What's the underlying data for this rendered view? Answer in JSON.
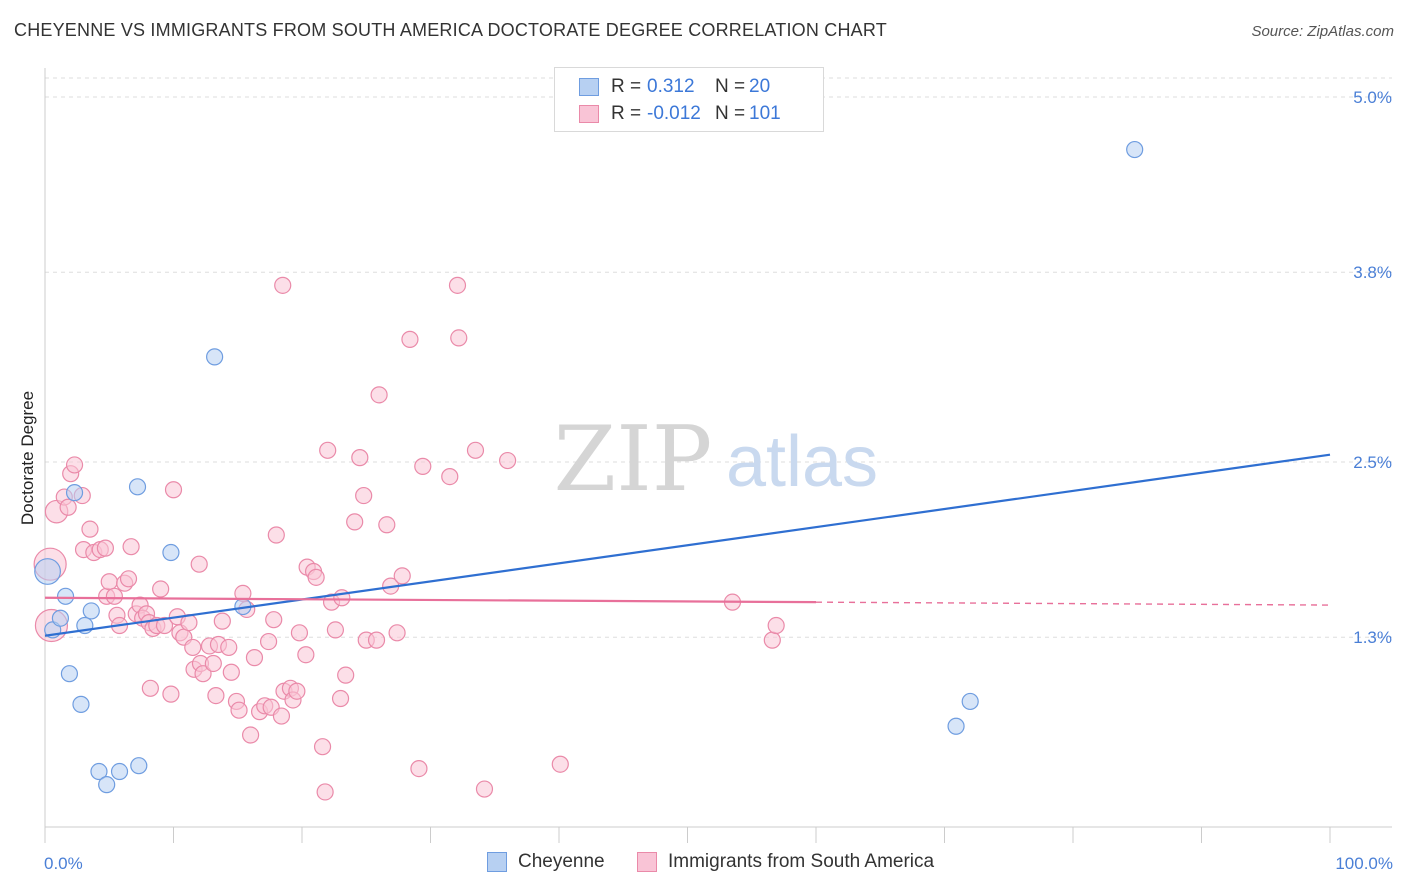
{
  "header": {
    "title": "CHEYENNE VS IMMIGRANTS FROM SOUTH AMERICA DOCTORATE DEGREE CORRELATION CHART",
    "source": "Source: ZipAtlas.com"
  },
  "watermark": {
    "zip": "ZIP",
    "atlas": "atlas"
  },
  "legend_top": {
    "rows": [
      {
        "r_label": "R =",
        "r_value": "0.312",
        "n_label": "N =",
        "n_value": "20"
      },
      {
        "r_label": "R =",
        "r_value": "-0.012",
        "n_label": "N =",
        "n_value": "101"
      }
    ]
  },
  "legend_bottom": {
    "items": [
      "Cheyenne",
      "Immigrants from South America"
    ]
  },
  "colors": {
    "cheyenne_fill": "#b7d0f2",
    "cheyenne_stroke": "#6f9de0",
    "cheyenne_line": "#2f6fd1",
    "immig_fill": "#f9c4d6",
    "immig_stroke": "#ea8aa9",
    "immig_line": "#e8709a",
    "tick_label": "#4a7fd6",
    "grid": "#dddddd"
  },
  "chart_data": {
    "type": "scatter",
    "title": "CHEYENNE VS IMMIGRANTS FROM SOUTH AMERICA DOCTORATE DEGREE CORRELATION CHART",
    "xlabel": "",
    "ylabel": "Doctorate Degree",
    "xlim": [
      0,
      100
    ],
    "ylim": [
      0,
      5.2
    ],
    "x_tick_labels": [
      "0.0%",
      "100.0%"
    ],
    "y_ticks": [
      1.3,
      2.5,
      3.8,
      5.0
    ],
    "y_tick_labels": [
      "1.3%",
      "2.5%",
      "3.8%",
      "5.0%"
    ],
    "series": [
      {
        "name": "Cheyenne",
        "r": 0.312,
        "n": 20,
        "trend": {
          "x": [
            0,
            100
          ],
          "y": [
            1.31,
            2.55
          ],
          "dashed_from": null
        },
        "points": [
          {
            "x": 0.2,
            "y": 1.75,
            "s": 1.6
          },
          {
            "x": 0.6,
            "y": 1.35,
            "s": 1.0
          },
          {
            "x": 1.2,
            "y": 1.43,
            "s": 1.0
          },
          {
            "x": 1.6,
            "y": 1.58,
            "s": 1.0
          },
          {
            "x": 1.9,
            "y": 1.05,
            "s": 1.0
          },
          {
            "x": 2.8,
            "y": 0.84,
            "s": 1.0
          },
          {
            "x": 2.3,
            "y": 2.29,
            "s": 1.0
          },
          {
            "x": 3.1,
            "y": 1.38,
            "s": 1.0
          },
          {
            "x": 3.6,
            "y": 1.48,
            "s": 1.0
          },
          {
            "x": 4.2,
            "y": 0.38,
            "s": 1.0
          },
          {
            "x": 4.8,
            "y": 0.29,
            "s": 1.0
          },
          {
            "x": 5.8,
            "y": 0.38,
            "s": 1.0
          },
          {
            "x": 7.3,
            "y": 0.42,
            "s": 1.0
          },
          {
            "x": 7.2,
            "y": 2.33,
            "s": 1.0
          },
          {
            "x": 9.8,
            "y": 1.88,
            "s": 1.0
          },
          {
            "x": 13.2,
            "y": 3.22,
            "s": 1.0
          },
          {
            "x": 15.4,
            "y": 1.51,
            "s": 1.0
          },
          {
            "x": 70.9,
            "y": 0.69,
            "s": 1.0
          },
          {
            "x": 72.0,
            "y": 0.86,
            "s": 1.0
          },
          {
            "x": 84.8,
            "y": 4.64,
            "s": 1.0
          }
        ]
      },
      {
        "name": "Immigrants from South America",
        "r": -0.012,
        "n": 101,
        "trend": {
          "x": [
            0,
            100
          ],
          "y": [
            1.57,
            1.52
          ],
          "dashed_from": 60
        },
        "points": [
          {
            "x": 0.4,
            "y": 1.8,
            "s": 2.0
          },
          {
            "x": 0.5,
            "y": 1.38,
            "s": 2.0
          },
          {
            "x": 0.9,
            "y": 2.16,
            "s": 1.4
          },
          {
            "x": 1.5,
            "y": 2.26,
            "s": 1.0
          },
          {
            "x": 1.8,
            "y": 2.19,
            "s": 1.0
          },
          {
            "x": 2.0,
            "y": 2.42,
            "s": 1.0
          },
          {
            "x": 2.3,
            "y": 2.48,
            "s": 1.0
          },
          {
            "x": 2.9,
            "y": 2.27,
            "s": 1.0
          },
          {
            "x": 3.0,
            "y": 1.9,
            "s": 1.0
          },
          {
            "x": 3.5,
            "y": 2.04,
            "s": 1.0
          },
          {
            "x": 3.8,
            "y": 1.88,
            "s": 1.0
          },
          {
            "x": 4.3,
            "y": 1.9,
            "s": 1.0
          },
          {
            "x": 4.7,
            "y": 1.91,
            "s": 1.0
          },
          {
            "x": 4.8,
            "y": 1.58,
            "s": 1.0
          },
          {
            "x": 5.0,
            "y": 1.68,
            "s": 1.0
          },
          {
            "x": 5.4,
            "y": 1.58,
            "s": 1.0
          },
          {
            "x": 5.6,
            "y": 1.45,
            "s": 1.0
          },
          {
            "x": 5.8,
            "y": 1.38,
            "s": 1.0
          },
          {
            "x": 6.2,
            "y": 1.67,
            "s": 1.0
          },
          {
            "x": 6.5,
            "y": 1.7,
            "s": 1.0
          },
          {
            "x": 6.7,
            "y": 1.92,
            "s": 1.0
          },
          {
            "x": 7.1,
            "y": 1.46,
            "s": 1.0
          },
          {
            "x": 7.4,
            "y": 1.52,
            "s": 1.0
          },
          {
            "x": 7.6,
            "y": 1.43,
            "s": 1.0
          },
          {
            "x": 7.9,
            "y": 1.46,
            "s": 1.0
          },
          {
            "x": 8.1,
            "y": 1.4,
            "s": 1.0
          },
          {
            "x": 8.2,
            "y": 0.95,
            "s": 1.0
          },
          {
            "x": 8.4,
            "y": 1.36,
            "s": 1.0
          },
          {
            "x": 8.7,
            "y": 1.38,
            "s": 1.0
          },
          {
            "x": 9.0,
            "y": 1.63,
            "s": 1.0
          },
          {
            "x": 9.3,
            "y": 1.38,
            "s": 1.0
          },
          {
            "x": 9.8,
            "y": 0.91,
            "s": 1.0
          },
          {
            "x": 10.0,
            "y": 2.31,
            "s": 1.0
          },
          {
            "x": 10.3,
            "y": 1.44,
            "s": 1.0
          },
          {
            "x": 10.5,
            "y": 1.33,
            "s": 1.0
          },
          {
            "x": 10.8,
            "y": 1.3,
            "s": 1.0
          },
          {
            "x": 11.2,
            "y": 1.4,
            "s": 1.0
          },
          {
            "x": 11.5,
            "y": 1.23,
            "s": 1.0
          },
          {
            "x": 11.6,
            "y": 1.08,
            "s": 1.0
          },
          {
            "x": 12.0,
            "y": 1.8,
            "s": 1.0
          },
          {
            "x": 12.1,
            "y": 1.12,
            "s": 1.0
          },
          {
            "x": 12.3,
            "y": 1.05,
            "s": 1.0
          },
          {
            "x": 12.8,
            "y": 1.24,
            "s": 1.0
          },
          {
            "x": 13.1,
            "y": 1.12,
            "s": 1.0
          },
          {
            "x": 13.3,
            "y": 0.9,
            "s": 1.0
          },
          {
            "x": 13.5,
            "y": 1.25,
            "s": 1.0
          },
          {
            "x": 13.8,
            "y": 1.41,
            "s": 1.0
          },
          {
            "x": 14.3,
            "y": 1.23,
            "s": 1.0
          },
          {
            "x": 14.5,
            "y": 1.06,
            "s": 1.0
          },
          {
            "x": 14.9,
            "y": 0.86,
            "s": 1.0
          },
          {
            "x": 15.1,
            "y": 0.8,
            "s": 1.0
          },
          {
            "x": 15.4,
            "y": 1.6,
            "s": 1.0
          },
          {
            "x": 15.7,
            "y": 1.49,
            "s": 1.0
          },
          {
            "x": 16.0,
            "y": 0.63,
            "s": 1.0
          },
          {
            "x": 16.3,
            "y": 1.16,
            "s": 1.0
          },
          {
            "x": 16.7,
            "y": 0.79,
            "s": 1.0
          },
          {
            "x": 17.1,
            "y": 0.83,
            "s": 1.0
          },
          {
            "x": 17.4,
            "y": 1.27,
            "s": 1.0
          },
          {
            "x": 17.6,
            "y": 0.82,
            "s": 1.0
          },
          {
            "x": 17.8,
            "y": 1.42,
            "s": 1.0
          },
          {
            "x": 18.0,
            "y": 2.0,
            "s": 1.0
          },
          {
            "x": 18.4,
            "y": 0.76,
            "s": 1.0
          },
          {
            "x": 18.5,
            "y": 3.71,
            "s": 1.0
          },
          {
            "x": 18.6,
            "y": 0.93,
            "s": 1.0
          },
          {
            "x": 19.1,
            "y": 0.95,
            "s": 1.0
          },
          {
            "x": 19.3,
            "y": 0.87,
            "s": 1.0
          },
          {
            "x": 19.6,
            "y": 0.93,
            "s": 1.0
          },
          {
            "x": 19.8,
            "y": 1.33,
            "s": 1.0
          },
          {
            "x": 20.3,
            "y": 1.18,
            "s": 1.0
          },
          {
            "x": 20.4,
            "y": 1.78,
            "s": 1.0
          },
          {
            "x": 20.9,
            "y": 1.75,
            "s": 1.0
          },
          {
            "x": 21.1,
            "y": 1.71,
            "s": 1.0
          },
          {
            "x": 21.6,
            "y": 0.55,
            "s": 1.0
          },
          {
            "x": 21.8,
            "y": 0.24,
            "s": 1.0
          },
          {
            "x": 22.0,
            "y": 2.58,
            "s": 1.0
          },
          {
            "x": 22.3,
            "y": 1.54,
            "s": 1.0
          },
          {
            "x": 22.6,
            "y": 1.35,
            "s": 1.0
          },
          {
            "x": 23.0,
            "y": 0.88,
            "s": 1.0
          },
          {
            "x": 23.1,
            "y": 1.57,
            "s": 1.0
          },
          {
            "x": 23.4,
            "y": 1.04,
            "s": 1.0
          },
          {
            "x": 24.1,
            "y": 2.09,
            "s": 1.0
          },
          {
            "x": 24.5,
            "y": 2.53,
            "s": 1.0
          },
          {
            "x": 24.8,
            "y": 2.27,
            "s": 1.0
          },
          {
            "x": 25.0,
            "y": 1.28,
            "s": 1.0
          },
          {
            "x": 25.8,
            "y": 1.28,
            "s": 1.0
          },
          {
            "x": 26.0,
            "y": 2.96,
            "s": 1.0
          },
          {
            "x": 26.6,
            "y": 2.07,
            "s": 1.0
          },
          {
            "x": 26.9,
            "y": 1.65,
            "s": 1.0
          },
          {
            "x": 27.4,
            "y": 1.33,
            "s": 1.0
          },
          {
            "x": 27.8,
            "y": 1.72,
            "s": 1.0
          },
          {
            "x": 28.4,
            "y": 3.34,
            "s": 1.0
          },
          {
            "x": 29.1,
            "y": 0.4,
            "s": 1.0
          },
          {
            "x": 29.4,
            "y": 2.47,
            "s": 1.0
          },
          {
            "x": 31.5,
            "y": 2.4,
            "s": 1.0
          },
          {
            "x": 32.1,
            "y": 3.71,
            "s": 1.0
          },
          {
            "x": 32.2,
            "y": 3.35,
            "s": 1.0
          },
          {
            "x": 33.5,
            "y": 2.58,
            "s": 1.0
          },
          {
            "x": 34.2,
            "y": 0.26,
            "s": 1.0
          },
          {
            "x": 36.0,
            "y": 2.51,
            "s": 1.0
          },
          {
            "x": 40.1,
            "y": 0.43,
            "s": 1.0
          },
          {
            "x": 53.5,
            "y": 1.54,
            "s": 1.0
          },
          {
            "x": 56.6,
            "y": 1.28,
            "s": 1.0
          },
          {
            "x": 56.9,
            "y": 1.38,
            "s": 1.0
          }
        ]
      }
    ]
  }
}
